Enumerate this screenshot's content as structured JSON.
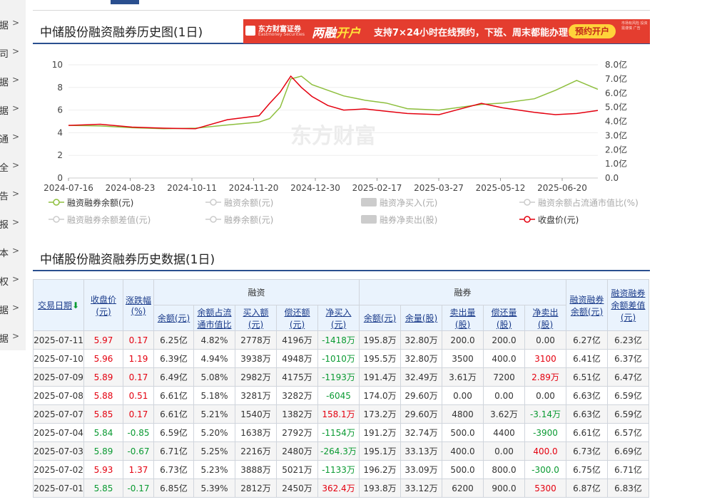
{
  "sidenav": [
    "据",
    "司",
    "据",
    "据",
    "通",
    "全",
    "告",
    "报",
    "本",
    "权",
    "据",
    "据"
  ],
  "header": {
    "chart_title": "中储股份融资融券历史图(1日)",
    "table_title": "中储股份融资融券历史数据(1日)"
  },
  "banner": {
    "brand": "东方财富证券",
    "brand_en": "Eastmoney Securities",
    "headline_a": "两融",
    "headline_b": "开户",
    "message": "支持7×24小时在线预约，下班、周末都能办理!",
    "button": "预约开户",
    "risk": "市场有风险 投资需谨慎",
    "ad_tag": "广告",
    "accent_color": "#e43d2f"
  },
  "chart_data": {
    "type": "line",
    "title": "",
    "watermark": "东方财富",
    "x_tick_labels": [
      "2024-07-16",
      "2024-08-23",
      "2024-10-11",
      "2024-11-20",
      "2024-12-30",
      "2025-02-17",
      "2025-03-27",
      "2025-05-12",
      "2025-06-20"
    ],
    "y_left": {
      "ylim": [
        0,
        10
      ],
      "ticks": [
        "0",
        "2",
        "4",
        "6",
        "8",
        "10"
      ]
    },
    "y_right": {
      "ylim": [
        0,
        8
      ],
      "ticks": [
        "0.0",
        "1.0亿",
        "2.0亿",
        "3.0亿",
        "4.0亿",
        "5.0亿",
        "6.0亿",
        "7.0亿",
        "8.0亿"
      ]
    },
    "series": [
      {
        "name": "融资融券余额(元)",
        "axis": "right",
        "unit": "亿元",
        "color": "#8ebf3e",
        "x": [
          0,
          6,
          12,
          18,
          24,
          30,
          36,
          38,
          40,
          42,
          44,
          46,
          49,
          52,
          56,
          60,
          64,
          70,
          78,
          82,
          88,
          92,
          96,
          100
        ],
        "values": [
          3.72,
          3.68,
          3.55,
          3.48,
          3.52,
          3.75,
          3.95,
          4.2,
          5.0,
          7.0,
          7.2,
          6.6,
          6.2,
          5.8,
          5.5,
          5.3,
          4.9,
          4.8,
          5.2,
          5.3,
          5.6,
          6.2,
          6.9,
          6.27
        ]
      },
      {
        "name": "收盘价(元)",
        "axis": "left",
        "unit": "元",
        "color": "#e4000f",
        "x": [
          0,
          6,
          12,
          18,
          24,
          30,
          36,
          38,
          40,
          42,
          44,
          46,
          49,
          52,
          56,
          60,
          64,
          70,
          78,
          82,
          88,
          92,
          96,
          100
        ],
        "values": [
          4.65,
          4.75,
          4.5,
          4.4,
          4.35,
          5.15,
          5.5,
          6.6,
          7.6,
          9.0,
          8.0,
          7.2,
          6.4,
          6.0,
          6.1,
          5.9,
          5.7,
          5.6,
          6.6,
          6.2,
          5.8,
          5.6,
          5.7,
          5.97
        ]
      }
    ]
  },
  "legend": [
    {
      "label": "融资融券余额(元)",
      "style": "line-circle",
      "color": "#8ebf3e",
      "active": true
    },
    {
      "label": "融资余额(元)",
      "style": "line-circle",
      "color": "#cccccc",
      "active": false
    },
    {
      "label": "融资净买入(元)",
      "style": "bar",
      "color": "#cccccc",
      "active": false
    },
    {
      "label": "融资余额占流通市值比(%)",
      "style": "line-circle",
      "color": "#cccccc",
      "active": false
    },
    {
      "label": "融资融券余额差值(元)",
      "style": "line-circle",
      "color": "#cccccc",
      "active": false
    },
    {
      "label": "融券余额(元)",
      "style": "line-circle",
      "color": "#cccccc",
      "active": false
    },
    {
      "label": "融券净卖出(股)",
      "style": "bar",
      "color": "#cccccc",
      "active": false
    },
    {
      "label": "收盘价(元)",
      "style": "line-circle",
      "color": "#e4000f",
      "active": true
    }
  ],
  "table": {
    "headers": {
      "date": "交易日期",
      "date_arrow": "⬇",
      "close_a": "收盘价",
      "close_b": "(元)",
      "chg_a": "涨跌幅",
      "chg_b": "(%)",
      "rz_group": "融资",
      "rq_group": "融券",
      "rz_balance": "余额(元)",
      "rz_ratio_a": "余额占流",
      "rz_ratio_b": "通市值比",
      "rz_buy_a": "买入额",
      "rz_buy_b": "(元)",
      "rz_repay_a": "偿还额",
      "rz_repay_b": "(元)",
      "rz_net_a": "净买入",
      "rz_net_b": "(元)",
      "rq_balance": "余额(元)",
      "rq_volume": "余量(股)",
      "rq_sell_a": "卖出量",
      "rq_sell_b": "(股)",
      "rq_repay_a": "偿还量",
      "rq_repay_b": "(股)",
      "rq_net_a": "净卖出",
      "rq_net_b": "(股)",
      "total_a": "融资融券",
      "total_b": "余额(元)",
      "diff_a": "融资融券",
      "diff_b": "余额差值",
      "diff_c": "(元)"
    },
    "rows": [
      {
        "date": "2025-07-11",
        "close": "5.97",
        "chg": "0.17",
        "rz_bal": "6.25亿",
        "rz_ratio": "4.82%",
        "rz_buy": "2778万",
        "rz_repay": "4196万",
        "rz_net": "-1418万",
        "rq_bal": "195.8万",
        "rq_vol": "32.80万",
        "rq_sell": "200.0",
        "rq_repay": "200.0",
        "rq_net": "0.00",
        "total": "6.27亿",
        "diff": "6.23亿"
      },
      {
        "date": "2025-07-10",
        "close": "5.96",
        "chg": "1.19",
        "rz_bal": "6.39亿",
        "rz_ratio": "4.94%",
        "rz_buy": "3938万",
        "rz_repay": "4948万",
        "rz_net": "-1010万",
        "rq_bal": "195.5万",
        "rq_vol": "32.80万",
        "rq_sell": "3500",
        "rq_repay": "400.0",
        "rq_net": "3100",
        "total": "6.41亿",
        "diff": "6.37亿"
      },
      {
        "date": "2025-07-09",
        "close": "5.89",
        "chg": "0.17",
        "rz_bal": "6.49亿",
        "rz_ratio": "5.08%",
        "rz_buy": "2982万",
        "rz_repay": "4175万",
        "rz_net": "-1193万",
        "rq_bal": "191.4万",
        "rq_vol": "32.49万",
        "rq_sell": "3.61万",
        "rq_repay": "7200",
        "rq_net": "2.89万",
        "total": "6.51亿",
        "diff": "6.47亿"
      },
      {
        "date": "2025-07-08",
        "close": "5.88",
        "chg": "0.51",
        "rz_bal": "6.61亿",
        "rz_ratio": "5.18%",
        "rz_buy": "3281万",
        "rz_repay": "3282万",
        "rz_net": "-6045",
        "rq_bal": "174.0万",
        "rq_vol": "29.60万",
        "rq_sell": "0.00",
        "rq_repay": "0.00",
        "rq_net": "0.00",
        "total": "6.63亿",
        "diff": "6.59亿"
      },
      {
        "date": "2025-07-07",
        "close": "5.85",
        "chg": "0.17",
        "rz_bal": "6.61亿",
        "rz_ratio": "5.21%",
        "rz_buy": "1540万",
        "rz_repay": "1382万",
        "rz_net": "158.1万",
        "rq_bal": "173.2万",
        "rq_vol": "29.60万",
        "rq_sell": "4800",
        "rq_repay": "3.62万",
        "rq_net": "-3.14万",
        "total": "6.63亿",
        "diff": "6.59亿"
      },
      {
        "date": "2025-07-04",
        "close": "5.84",
        "chg": "-0.85",
        "rz_bal": "6.59亿",
        "rz_ratio": "5.20%",
        "rz_buy": "1638万",
        "rz_repay": "2792万",
        "rz_net": "-1154万",
        "rq_bal": "191.2万",
        "rq_vol": "32.74万",
        "rq_sell": "500.0",
        "rq_repay": "4400",
        "rq_net": "-3900",
        "total": "6.61亿",
        "diff": "6.57亿"
      },
      {
        "date": "2025-07-03",
        "close": "5.89",
        "chg": "-0.67",
        "rz_bal": "6.71亿",
        "rz_ratio": "5.25%",
        "rz_buy": "2216万",
        "rz_repay": "2480万",
        "rz_net": "-264.3万",
        "rq_bal": "195.1万",
        "rq_vol": "33.13万",
        "rq_sell": "400.0",
        "rq_repay": "0.00",
        "rq_net": "400.0",
        "total": "6.73亿",
        "diff": "6.69亿"
      },
      {
        "date": "2025-07-02",
        "close": "5.93",
        "chg": "1.37",
        "rz_bal": "6.73亿",
        "rz_ratio": "5.23%",
        "rz_buy": "3888万",
        "rz_repay": "5021万",
        "rz_net": "-1133万",
        "rq_bal": "196.2万",
        "rq_vol": "33.09万",
        "rq_sell": "500.0",
        "rq_repay": "800.0",
        "rq_net": "-300.0",
        "total": "6.75亿",
        "diff": "6.71亿"
      },
      {
        "date": "2025-07-01",
        "close": "5.85",
        "chg": "-0.17",
        "rz_bal": "6.85亿",
        "rz_ratio": "5.39%",
        "rz_buy": "2812万",
        "rz_repay": "2450万",
        "rz_net": "362.4万",
        "rq_bal": "193.8万",
        "rq_vol": "33.12万",
        "rq_sell": "6200",
        "rq_repay": "900.0",
        "rq_net": "5300",
        "total": "6.87亿",
        "diff": "6.83亿"
      }
    ]
  }
}
